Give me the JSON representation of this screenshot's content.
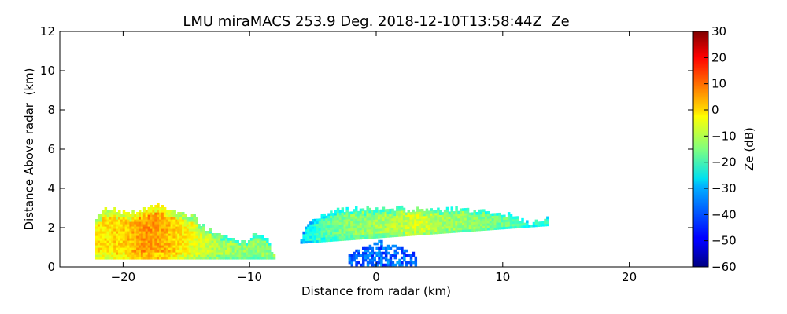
{
  "chart_data": {
    "type": "heatmap",
    "title": "LMU miraMACS 253.9 Deg. 2018-12-10T13:58:44Z  Ze",
    "xlabel": "Distance from radar (km)",
    "ylabel": "Distance Above radar  (km)",
    "colorbar_label": "Ze (dB)",
    "xlim": [
      -25,
      25
    ],
    "ylim": [
      0,
      12
    ],
    "clim": [
      -60,
      30
    ],
    "x_ticks": [
      -20,
      -10,
      0,
      10,
      20
    ],
    "x_tick_labels": [
      "−20",
      "−10",
      "0",
      "10",
      "20"
    ],
    "y_ticks": [
      0,
      2,
      4,
      6,
      8,
      10,
      12
    ],
    "y_tick_labels": [
      "0",
      "2",
      "4",
      "6",
      "8",
      "10",
      "12"
    ],
    "colorbar_ticks": [
      -60,
      -50,
      -40,
      -30,
      -20,
      -10,
      0,
      10,
      20,
      30
    ],
    "colorbar_tick_labels": [
      "−60",
      "−50",
      "−40",
      "−30",
      "−20",
      "−10",
      "0",
      "10",
      "20",
      "30"
    ],
    "colormap": "jet",
    "echo_regions": [
      {
        "name": "western-echo",
        "x_range": [
          -22.2,
          -8.0
        ],
        "base_km": 0.4,
        "top_profile": [
          [
            -22.2,
            2.4
          ],
          [
            -21.5,
            3.0
          ],
          [
            -20.5,
            2.8
          ],
          [
            -19.5,
            2.7
          ],
          [
            -18.5,
            2.8
          ],
          [
            -17.5,
            3.2
          ],
          [
            -16.5,
            2.9
          ],
          [
            -15.5,
            2.6
          ],
          [
            -14.5,
            2.5
          ],
          [
            -13.5,
            1.9
          ],
          [
            -12.5,
            1.6
          ],
          [
            -11.5,
            1.4
          ],
          [
            -10.5,
            1.2
          ],
          [
            -9.5,
            1.7
          ],
          [
            -8.6,
            1.3
          ],
          [
            -8.2,
            0.5
          ],
          [
            -8.0,
            0.2
          ]
        ],
        "reflectivity_profile": [
          [
            -22,
            -2
          ],
          [
            -20,
            0
          ],
          [
            -18.5,
            6
          ],
          [
            -17,
            4
          ],
          [
            -15,
            -4
          ],
          [
            -13,
            -10
          ],
          [
            -11,
            -13
          ],
          [
            -9,
            -14
          ]
        ]
      },
      {
        "name": "central-echo",
        "x_range": [
          -6.0,
          13.5
        ],
        "base_km": 1.2,
        "top_profile": [
          [
            -6.0,
            1.4
          ],
          [
            -5.5,
            2.2
          ],
          [
            -4.0,
            2.7
          ],
          [
            -2.5,
            2.9
          ],
          [
            0.0,
            2.9
          ],
          [
            2.0,
            2.9
          ],
          [
            4.0,
            2.8
          ],
          [
            6.0,
            2.9
          ],
          [
            8.0,
            2.8
          ],
          [
            10.0,
            2.7
          ],
          [
            11.0,
            2.4
          ],
          [
            12.0,
            2.2
          ],
          [
            13.5,
            2.4
          ]
        ],
        "reflectivity_profile": [
          [
            -6,
            -28
          ],
          [
            -4,
            -18
          ],
          [
            -2,
            -14
          ],
          [
            0,
            -12
          ],
          [
            2,
            -10
          ],
          [
            3,
            -6
          ],
          [
            5,
            -12
          ],
          [
            8,
            -14
          ],
          [
            11,
            -18
          ],
          [
            13,
            -22
          ]
        ]
      }
    ]
  }
}
